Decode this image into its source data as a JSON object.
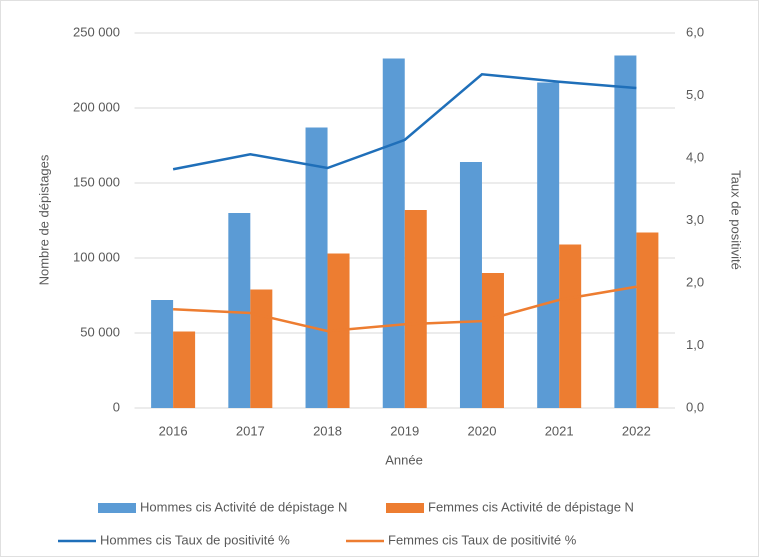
{
  "chart_data": {
    "type": "bar_line",
    "x_label": "Année",
    "y_label": "Nombre de dépistages",
    "y2_label": "Taux de positivité",
    "categories": [
      "2016",
      "2017",
      "2018",
      "2019",
      "2020",
      "2021",
      "2022"
    ],
    "series": [
      {
        "name": "Hommes cis Activité de dépistage N",
        "color": "#5b9bd5",
        "kind": "bar",
        "values": [
          72000,
          130000,
          187000,
          233000,
          164000,
          217000,
          235000
        ]
      },
      {
        "name": "Femmes cis Activité de dépistage N",
        "color": "#ed7d31",
        "kind": "bar",
        "values": [
          51000,
          79000,
          103000,
          132000,
          90000,
          109000,
          117000
        ]
      },
      {
        "name": "Hommes cis Taux de positivité %",
        "color": "#1f6fb9",
        "kind": "line",
        "axis": "y2",
        "values": [
          3.82,
          4.06,
          3.84,
          4.29,
          5.34,
          5.22,
          5.12
        ]
      },
      {
        "name": "Femmes cis Taux de positivité %",
        "color": "#ed7d31",
        "kind": "line",
        "axis": "y2",
        "values": [
          1.58,
          1.52,
          1.23,
          1.34,
          1.39,
          1.73,
          1.94
        ]
      }
    ],
    "ylim": [
      0,
      250000
    ],
    "yticks": [
      0,
      {
        "value": 50000,
        "label": "50 000"
      },
      {
        "value": 100000,
        "label": "100 000"
      },
      {
        "value": 150000,
        "label": "150 000"
      },
      {
        "value": 200000,
        "label": "200 000"
      },
      {
        "value": 250000,
        "label": "250 000"
      }
    ],
    "y2lim": [
      0,
      6
    ],
    "y2ticks": [
      {
        "value": 0,
        "label": "0,0"
      },
      {
        "value": 1,
        "label": "1,0"
      },
      {
        "value": 2,
        "label": "2,0"
      },
      {
        "value": 3,
        "label": "3,0"
      },
      {
        "value": 4,
        "label": "4,0"
      },
      {
        "value": 5,
        "label": "5,0"
      },
      {
        "value": 6,
        "label": "6,0"
      }
    ],
    "grid": true,
    "legend": "bottom"
  }
}
